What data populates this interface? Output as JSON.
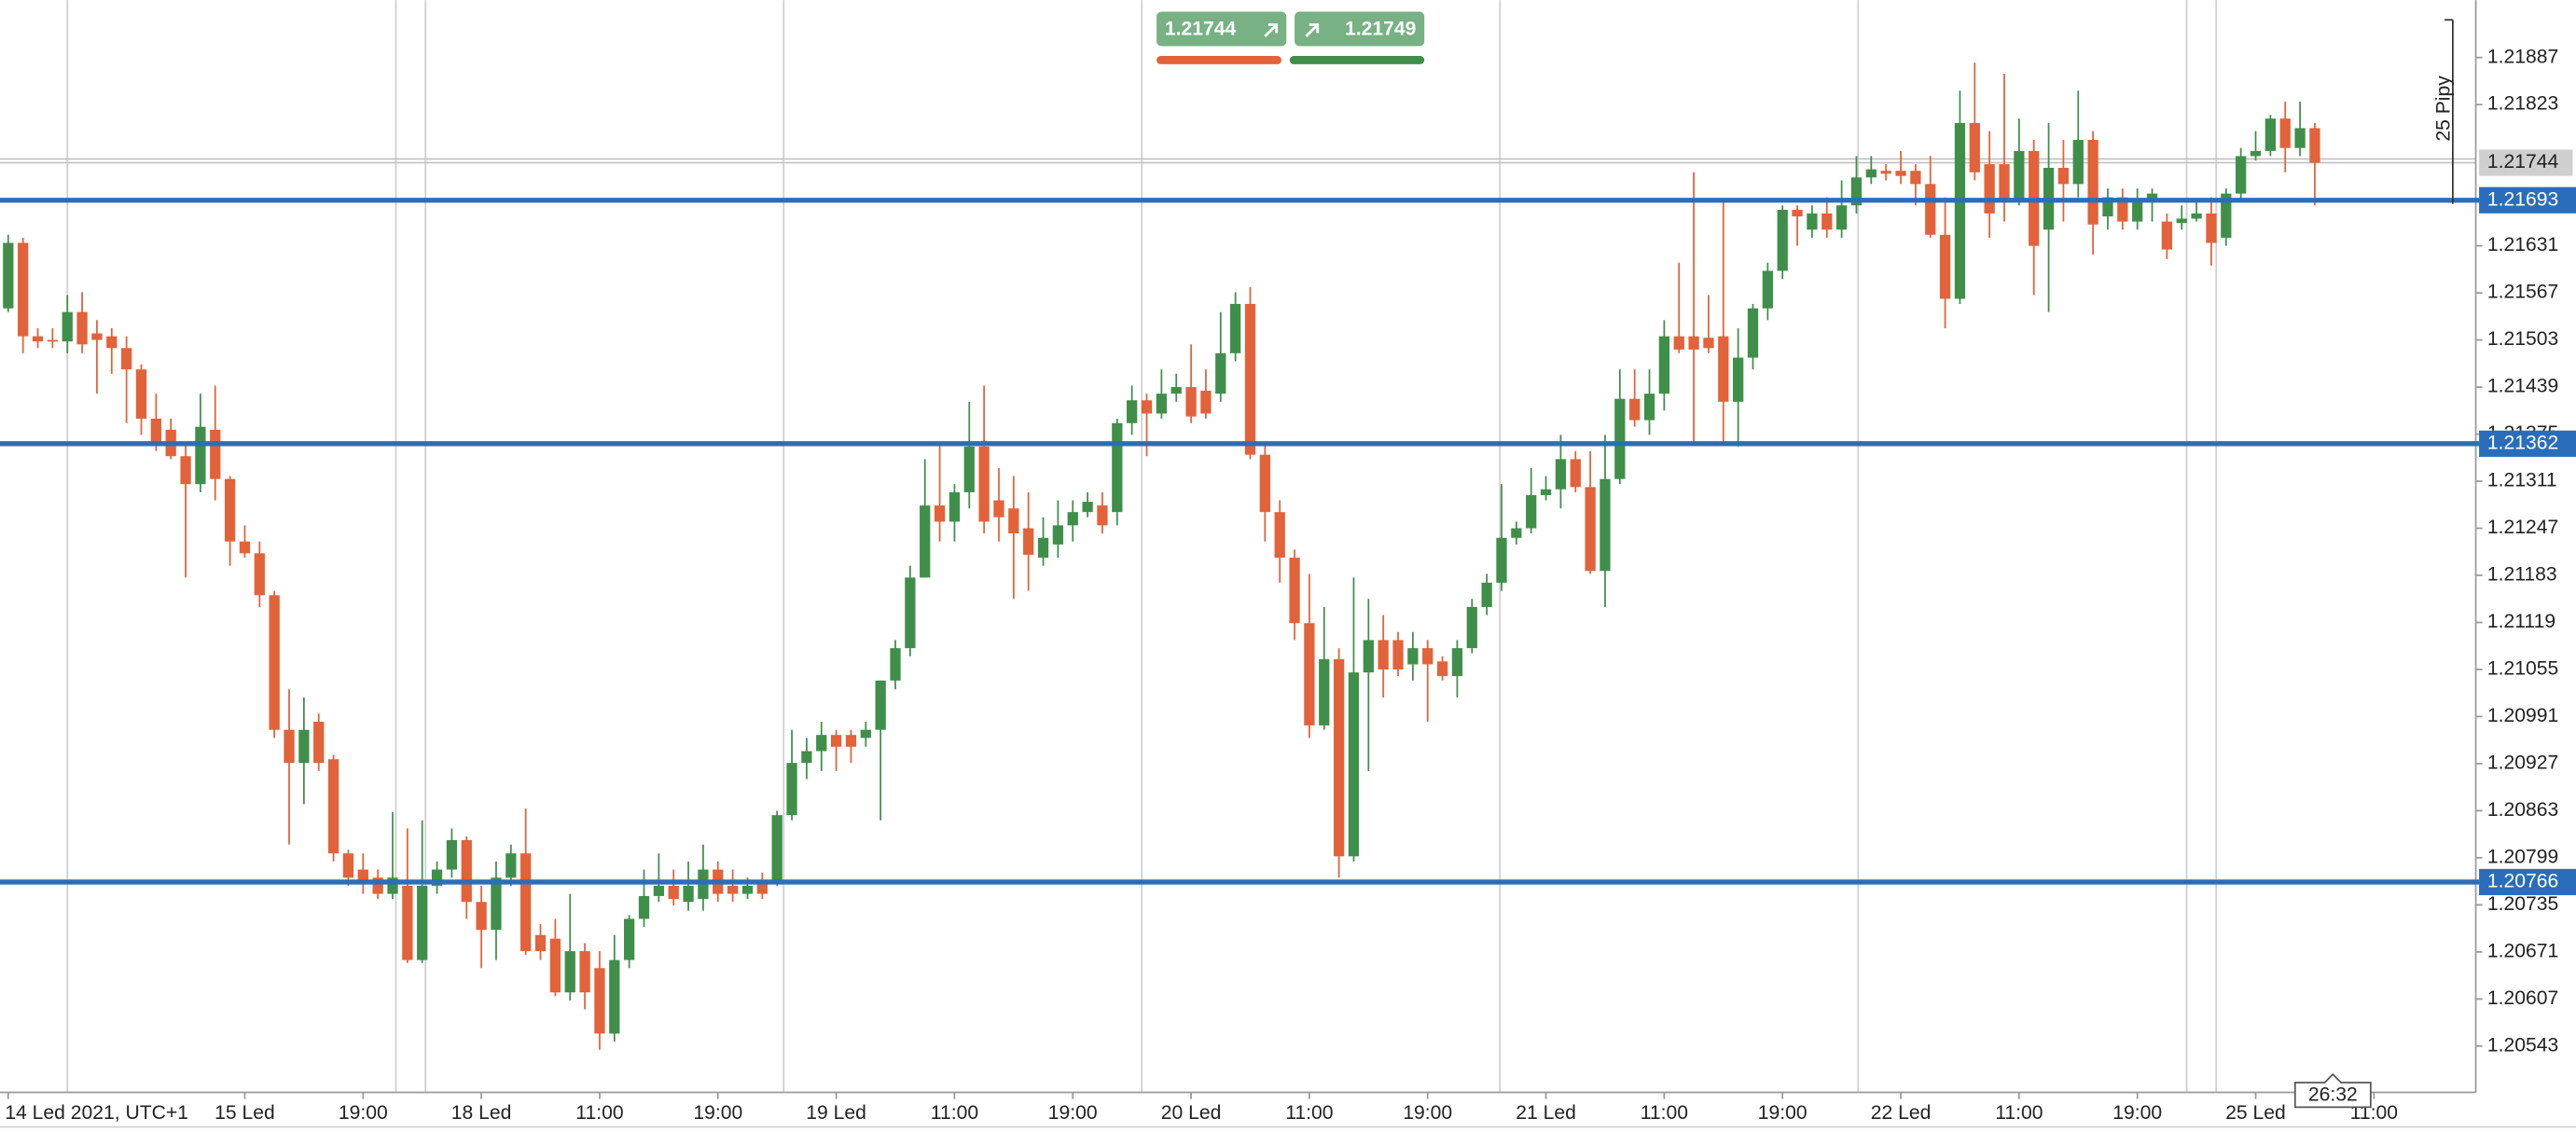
{
  "chart_data": {
    "type": "candlestick",
    "categories": [
      "14 Led 2021, UTC+1",
      null,
      null,
      null,
      null,
      null,
      null,
      null,
      null,
      null,
      null,
      null,
      null,
      null,
      null,
      null,
      "15 Led",
      null,
      null,
      null,
      null,
      null,
      null,
      null,
      "19:00",
      null,
      null,
      null,
      null,
      null,
      null,
      null,
      "18 Led",
      null,
      null,
      null,
      null,
      null,
      null,
      null,
      "11:00",
      null,
      null,
      null,
      null,
      null,
      null,
      null,
      "19:00",
      null,
      null,
      null,
      null,
      null,
      null,
      null,
      "19 Led",
      null,
      null,
      null,
      null,
      null,
      null,
      null,
      "11:00",
      null,
      null,
      null,
      null,
      null,
      null,
      null,
      "19:00",
      null,
      null,
      null,
      null,
      null,
      null,
      null,
      "20 Led",
      null,
      null,
      null,
      null,
      null,
      null,
      null,
      "11:00",
      null,
      null,
      null,
      null,
      null,
      null,
      null,
      "19:00",
      null,
      null,
      null,
      null,
      null,
      null,
      null,
      "21 Led",
      null,
      null,
      null,
      null,
      null,
      null,
      null,
      "11:00",
      null,
      null,
      null,
      null,
      null,
      null,
      null,
      "19:00",
      null,
      null,
      null,
      null,
      null,
      null,
      null,
      "22 Led",
      null,
      null,
      null,
      null,
      null,
      null,
      null,
      "11:00",
      null,
      null,
      null,
      null,
      null,
      null,
      null,
      "19:00",
      null,
      null,
      null,
      null,
      null,
      null,
      null,
      "25 Led",
      null,
      null,
      null,
      null,
      null,
      null,
      null,
      "11:00"
    ],
    "open": [
      1.21546,
      1.21635,
      1.21508,
      1.21503,
      1.21501,
      1.21541,
      1.21512,
      1.21508,
      1.21492,
      1.21463,
      1.21396,
      1.21381,
      1.21345,
      1.21307,
      1.21381,
      1.21314,
      1.21229,
      1.21213,
      1.21156,
      1.20973,
      1.20928,
      1.20984,
      1.20933,
      1.20805,
      1.20783,
      1.20772,
      1.2075,
      1.20761,
      1.2066,
      1.20761,
      1.20783,
      1.20823,
      1.20739,
      1.20701,
      1.20772,
      1.20805,
      1.20694,
      1.20689,
      1.20616,
      1.20672,
      1.20649,
      1.2056,
      1.2066,
      1.20716,
      1.20747,
      1.20761,
      1.20739,
      1.20743,
      1.20783,
      1.20761,
      1.2075,
      1.20767,
      1.20765,
      1.20857,
      1.20928,
      1.20944,
      1.20966,
      1.20966,
      1.20962,
      1.20973,
      1.2104,
      1.21084,
      1.2118,
      1.21278,
      1.21256,
      1.21296,
      1.21358,
      1.21285,
      1.21274,
      1.21247,
      1.21207,
      1.21225,
      1.21251,
      1.21269,
      1.21278,
      1.21269,
      1.2139,
      1.21421,
      1.21403,
      1.2143,
      1.21439,
      1.21434,
      1.2143,
      1.21485,
      1.21552,
      1.21347,
      1.21269,
      1.21207,
      1.21118,
      1.20979,
      1.21069,
      1.20801,
      1.21051,
      1.21095,
      1.21095,
      1.21062,
      1.21084,
      1.21066,
      1.21046,
      1.21084,
      1.2114,
      1.21173,
      1.21234,
      1.21247,
      1.21292,
      1.213,
      1.21341,
      1.21303,
      1.21189,
      1.21314,
      1.21423,
      1.21394,
      1.2143,
      1.21508,
      1.21508,
      1.21506,
      1.21508,
      1.21419,
      1.21479,
      1.21546,
      1.21597,
      1.2168,
      1.21653,
      1.21675,
      1.21653,
      1.21686,
      1.21724,
      1.21733,
      1.21733,
      1.21733,
      1.21715,
      1.21646,
      1.21559,
      1.21798,
      1.21742,
      1.21742,
      1.21693,
      1.2176,
      1.21653,
      1.21737,
      1.21715,
      1.21775,
      1.21671,
      1.21697,
      1.21664,
      1.21693,
      1.21664,
      1.21662,
      1.21668,
      1.21675,
      1.21642,
      1.21702,
      1.21753,
      1.2176,
      1.21804,
      1.21764,
      1.21791,
      null,
      null,
      null,
      null
    ],
    "high": [
      1.21646,
      1.21642,
      1.21519,
      1.21519,
      1.21564,
      1.21568,
      1.2153,
      1.21519,
      1.21508,
      1.2147,
      1.2143,
      1.21396,
      1.21363,
      1.2143,
      1.21441,
      1.21318,
      1.21251,
      1.21229,
      1.21162,
      1.21028,
      1.21017,
      1.20995,
      1.20939,
      1.2081,
      1.20805,
      1.20783,
      1.20861,
      1.20839,
      1.2085,
      1.20794,
      1.20839,
      1.20828,
      1.20761,
      1.20794,
      1.20817,
      1.20866,
      1.20709,
      1.20716,
      1.2075,
      1.20683,
      1.20672,
      1.20694,
      1.20721,
      1.20783,
      1.20805,
      1.20783,
      1.20794,
      1.20817,
      1.20794,
      1.20783,
      1.20772,
      1.20779,
      1.20863,
      1.20973,
      1.20962,
      1.20984,
      1.20973,
      1.20973,
      1.20984,
      1.2104,
      1.21095,
      1.21196,
      1.21341,
      1.21363,
      1.21307,
      1.21419,
      1.21441,
      1.21329,
      1.21318,
      1.21296,
      1.21262,
      1.21285,
      1.21285,
      1.21296,
      1.21296,
      1.21396,
      1.21441,
      1.2143,
      1.21463,
      1.21457,
      1.21497,
      1.21463,
      1.21541,
      1.21568,
      1.21575,
      1.21363,
      1.21285,
      1.21218,
      1.21185,
      1.2114,
      1.21084,
      1.2118,
      1.21151,
      1.21129,
      1.21106,
      1.21106,
      1.21095,
      1.21073,
      1.21095,
      1.21151,
      1.21185,
      1.21307,
      1.21256,
      1.21329,
      1.21318,
      1.21374,
      1.21352,
      1.21352,
      1.21374,
      1.21463,
      1.21463,
      1.21463,
      1.2153,
      1.21608,
      1.21731,
      1.21564,
      1.21693,
      1.21519,
      1.21552,
      1.21608,
      1.21686,
      1.21686,
      1.21686,
      1.21697,
      1.2172,
      1.21753,
      1.21753,
      1.21742,
      1.2176,
      1.21742,
      1.21753,
      1.21697,
      1.21842,
      1.2188,
      1.21787,
      1.21865,
      1.21804,
      1.21775,
      1.21798,
      1.21775,
      1.21842,
      1.21787,
      1.21709,
      1.21709,
      1.21709,
      1.21709,
      1.21675,
      1.21686,
      1.21693,
      1.21697,
      1.21709,
      1.21764,
      1.21787,
      1.21809,
      1.21827,
      1.21827,
      1.21798,
      null,
      null,
      null,
      null
    ],
    "low": [
      1.21541,
      1.21485,
      1.21492,
      1.21492,
      1.21485,
      1.21485,
      1.2143,
      1.21457,
      1.2139,
      1.21374,
      1.21352,
      1.21341,
      1.2118,
      1.21296,
      1.21285,
      1.21196,
      1.21207,
      1.2114,
      1.20962,
      1.20817,
      1.20872,
      1.20917,
      1.20794,
      1.20761,
      1.2075,
      1.20743,
      1.20743,
      1.20656,
      1.20656,
      1.2075,
      1.20772,
      1.20716,
      1.20649,
      1.2066,
      1.20761,
      1.20667,
      1.2066,
      1.20611,
      1.20605,
      1.20593,
      1.20538,
      1.20549,
      1.20649,
      1.20705,
      1.20739,
      1.20734,
      1.20727,
      1.20727,
      1.20739,
      1.20739,
      1.20743,
      1.20743,
      1.20761,
      1.2085,
      1.20906,
      1.20917,
      1.20917,
      1.20928,
      1.2095,
      1.2085,
      1.21028,
      1.21073,
      1.21185,
      1.21229,
      1.21229,
      1.21274,
      1.2124,
      1.21229,
      1.21151,
      1.21162,
      1.21196,
      1.21207,
      1.21229,
      1.21262,
      1.2124,
      1.21251,
      1.21374,
      1.21345,
      1.21396,
      1.21419,
      1.2139,
      1.21396,
      1.21419,
      1.21474,
      1.21341,
      1.21229,
      1.21173,
      1.21095,
      1.20962,
      1.20973,
      1.20772,
      1.20794,
      1.20917,
      1.21017,
      1.21046,
      1.2104,
      1.20984,
      1.2104,
      1.21017,
      1.21077,
      1.21129,
      1.21162,
      1.21225,
      1.2124,
      1.21285,
      1.21274,
      1.21296,
      1.21185,
      1.2114,
      1.21307,
      1.21385,
      1.21374,
      1.21407,
      1.21485,
      1.21363,
      1.21485,
      1.21363,
      1.21358,
      1.21463,
      1.2153,
      1.21586,
      1.21631,
      1.21642,
      1.21642,
      1.21642,
      1.21675,
      1.21715,
      1.2172,
      1.21715,
      1.21686,
      1.21642,
      1.21519,
      1.21552,
      1.2172,
      1.21642,
      1.21664,
      1.21686,
      1.21564,
      1.21541,
      1.21664,
      1.21697,
      1.21619,
      1.21653,
      1.21653,
      1.21653,
      1.21664,
      1.21613,
      1.21653,
      1.21664,
      1.21604,
      1.21631,
      1.21693,
      1.21747,
      1.21753,
      1.21731,
      1.21753,
      1.21686,
      null,
      null,
      null,
      null
    ],
    "close": [
      1.21635,
      1.21508,
      1.21501,
      1.21501,
      1.21541,
      1.21497,
      1.21503,
      1.21492,
      1.21463,
      1.21396,
      1.21363,
      1.21345,
      1.21307,
      1.21385,
      1.21314,
      1.21229,
      1.21213,
      1.21156,
      1.20973,
      1.20928,
      1.20973,
      1.20928,
      1.20805,
      1.20772,
      1.20765,
      1.2075,
      1.20772,
      1.2066,
      1.20761,
      1.20783,
      1.20823,
      1.20739,
      1.20701,
      1.20772,
      1.20805,
      1.20672,
      1.20672,
      1.20616,
      1.20672,
      1.20616,
      1.2056,
      1.2066,
      1.20716,
      1.20747,
      1.20761,
      1.20743,
      1.20761,
      1.20783,
      1.2075,
      1.2075,
      1.20761,
      1.2075,
      1.20857,
      1.20928,
      1.20944,
      1.20966,
      1.2095,
      1.2095,
      1.20973,
      1.2104,
      1.21084,
      1.2118,
      1.21278,
      1.21256,
      1.21296,
      1.21358,
      1.21256,
      1.21262,
      1.2124,
      1.21211,
      1.21234,
      1.21251,
      1.21269,
      1.21283,
      1.21251,
      1.2139,
      1.21421,
      1.21403,
      1.2143,
      1.21439,
      1.21399,
      1.21403,
      1.21485,
      1.21552,
      1.21347,
      1.21269,
      1.21207,
      1.21118,
      1.20979,
      1.21069,
      1.20801,
      1.21051,
      1.21095,
      1.21055,
      1.21055,
      1.21084,
      1.21062,
      1.21046,
      1.21084,
      1.2114,
      1.21173,
      1.21234,
      1.21247,
      1.21292,
      1.213,
      1.21341,
      1.21303,
      1.21189,
      1.21314,
      1.21423,
      1.21394,
      1.2143,
      1.21508,
      1.2149,
      1.2149,
      1.21492,
      1.21419,
      1.21479,
      1.21546,
      1.21597,
      1.2168,
      1.21671,
      1.21675,
      1.21653,
      1.21686,
      1.21724,
      1.21735,
      1.21729,
      1.21726,
      1.21715,
      1.21646,
      1.21559,
      1.21798,
      1.21731,
      1.21675,
      1.21693,
      1.2176,
      1.21631,
      1.21737,
      1.21715,
      1.21775,
      1.2166,
      1.21697,
      1.21664,
      1.21693,
      1.21702,
      1.21626,
      1.21668,
      1.21675,
      1.21635,
      1.21702,
      1.21753,
      1.2176,
      1.21804,
      1.21764,
      1.21791,
      1.21744,
      null,
      null,
      null,
      null
    ],
    "ylim": [
      1.2048,
      1.21965
    ],
    "yticks": [
      1.21887,
      1.21823,
      1.21631,
      1.21567,
      1.21503,
      1.21439,
      1.21375,
      1.21311,
      1.21247,
      1.21183,
      1.21119,
      1.21055,
      1.20991,
      1.20927,
      1.20863,
      1.20799,
      1.20735,
      1.20671,
      1.20607,
      1.20543
    ],
    "up_color": "#3f8f4a",
    "down_color": "#e2623a",
    "levels": [
      1.21693,
      1.21362,
      1.20766
    ],
    "level_color": "#2a6ebb",
    "bid": 1.21744,
    "ask": 1.21749,
    "range_label": "25 Pipy",
    "timer": "26:32"
  }
}
